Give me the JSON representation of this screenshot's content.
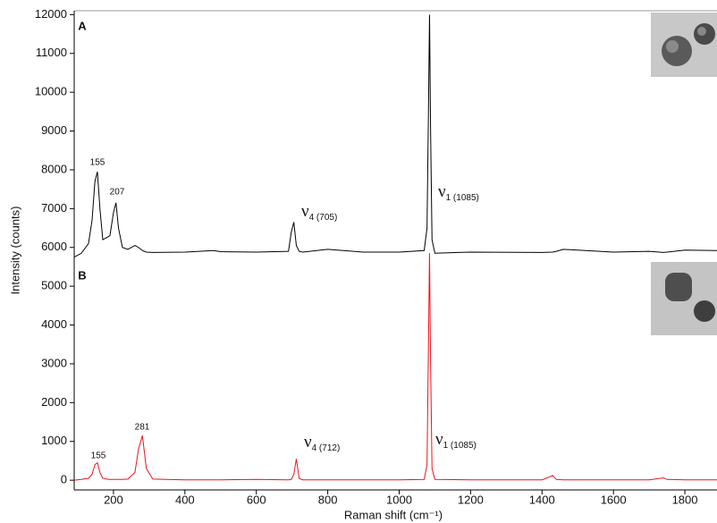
{
  "chart_data": {
    "type": "line",
    "xlabel": "Raman shift (cm⁻¹)",
    "ylabel": "Intensity (counts)",
    "panel_labels": [
      "A",
      "B"
    ],
    "x": [
      90,
      110,
      130,
      140,
      148,
      155,
      162,
      170,
      180,
      190,
      200,
      207,
      214,
      225,
      240,
      260,
      270,
      281,
      292,
      310,
      400,
      480,
      500,
      600,
      690,
      698,
      705,
      712,
      720,
      730,
      800,
      900,
      1000,
      1070,
      1078,
      1082,
      1085,
      1088,
      1092,
      1100,
      1200,
      1400,
      1430,
      1440,
      1460,
      1600,
      1700,
      1740,
      1750,
      1800,
      1890
    ],
    "series": [
      {
        "name": "A",
        "color": "#000000",
        "values": [
          5750,
          5850,
          6100,
          6700,
          7700,
          7950,
          7000,
          6200,
          6250,
          6300,
          6900,
          7150,
          6500,
          6000,
          5950,
          6050,
          6000,
          5920,
          5880,
          5870,
          5880,
          5920,
          5890,
          5880,
          5900,
          6400,
          6650,
          6050,
          5900,
          5880,
          5950,
          5880,
          5880,
          5920,
          6500,
          9500,
          12000,
          9000,
          6200,
          5850,
          5880,
          5870,
          5880,
          5900,
          5950,
          5880,
          5900,
          5870,
          5880,
          5930,
          5920
        ]
      },
      {
        "name": "B",
        "color": "#e8141c",
        "values": [
          0,
          20,
          50,
          150,
          400,
          450,
          200,
          50,
          30,
          20,
          20,
          20,
          20,
          20,
          30,
          200,
          800,
          1150,
          300,
          30,
          10,
          10,
          10,
          20,
          10,
          20,
          150,
          550,
          50,
          10,
          10,
          10,
          10,
          20,
          400,
          3500,
          5850,
          3000,
          300,
          20,
          10,
          10,
          120,
          20,
          10,
          10,
          10,
          60,
          20,
          10,
          10
        ]
      }
    ],
    "annotations": [
      {
        "text": "155"
      },
      {
        "text": "207"
      },
      {
        "symbol": "ν",
        "subscript": "4 (705)"
      },
      {
        "symbol": "ν",
        "subscript": "1 (1085)"
      },
      {
        "text": "155"
      },
      {
        "text": "281"
      },
      {
        "symbol": "ν",
        "subscript": "4 (712)"
      },
      {
        "symbol": "ν",
        "subscript": "1 (1085)"
      }
    ],
    "xlim": [
      90,
      1890
    ],
    "ylim": [
      -250,
      12100
    ],
    "xticks": [
      200,
      400,
      600,
      800,
      1000,
      1200,
      1400,
      1600,
      1800
    ],
    "yticks": [
      0,
      1000,
      2000,
      3000,
      4000,
      5000,
      6000,
      7000,
      8000,
      9000,
      10000,
      11000,
      12000
    ]
  }
}
